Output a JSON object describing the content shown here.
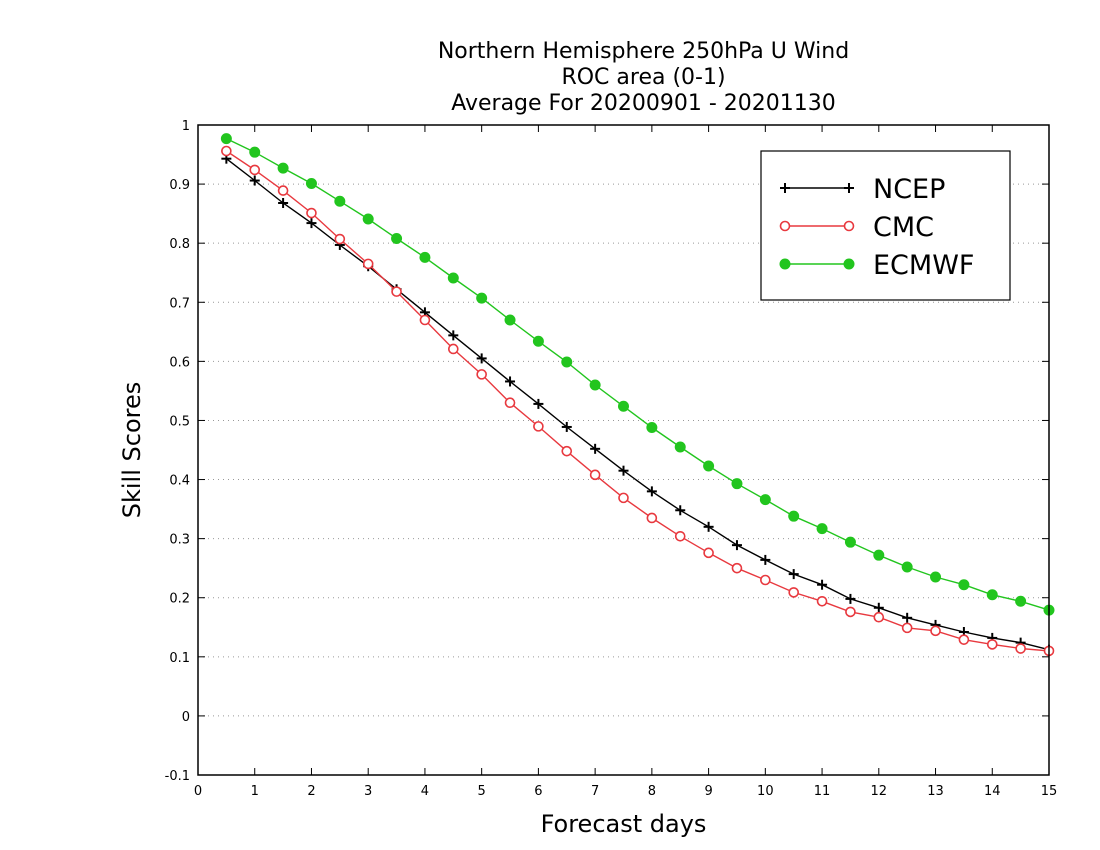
{
  "chart_data": {
    "type": "line",
    "title_lines": [
      "Northern Hemisphere 250hPa U Wind",
      "ROC area (0-1)",
      "Average For 20200901 - 20201130"
    ],
    "xlabel": "Forecast days",
    "ylabel": "Skill Scores",
    "xlim": [
      0,
      15
    ],
    "ylim": [
      -0.1,
      1
    ],
    "x_ticks": [
      0,
      1,
      2,
      3,
      4,
      5,
      6,
      7,
      8,
      9,
      10,
      11,
      12,
      13,
      14,
      15
    ],
    "y_ticks": [
      -0.1,
      0,
      0.1,
      0.2,
      0.3,
      0.4,
      0.5,
      0.6,
      0.7,
      0.8,
      0.9,
      1
    ],
    "y_tick_labels": [
      "-0.1",
      "0",
      "0.1",
      "0.2",
      "0.3",
      "0.4",
      "0.5",
      "0.6",
      "0.7",
      "0.8",
      "0.9",
      "1"
    ],
    "grid": "horizontal dotted",
    "legend_position": "top-right",
    "x": [
      0.5,
      1,
      1.5,
      2,
      2.5,
      3,
      3.5,
      4,
      4.5,
      5,
      5.5,
      6,
      6.5,
      7,
      7.5,
      8,
      8.5,
      9,
      9.5,
      10,
      10.5,
      11,
      11.5,
      12,
      12.5,
      13,
      13.5,
      14,
      14.5,
      15
    ],
    "series": [
      {
        "name": "NCEP",
        "color": "#000000",
        "marker": "plus",
        "values": [
          0.943,
          0.906,
          0.868,
          0.834,
          0.797,
          0.761,
          0.722,
          0.683,
          0.644,
          0.605,
          0.566,
          0.528,
          0.489,
          0.452,
          0.415,
          0.38,
          0.348,
          0.32,
          0.289,
          0.264,
          0.24,
          0.222,
          0.198,
          0.183,
          0.166,
          0.154,
          0.142,
          0.132,
          0.124,
          0.112
        ]
      },
      {
        "name": "CMC",
        "color": "#e8393f",
        "marker": "open-circle",
        "values": [
          0.956,
          0.924,
          0.889,
          0.851,
          0.807,
          0.765,
          0.718,
          0.67,
          0.621,
          0.578,
          0.53,
          0.49,
          0.448,
          0.408,
          0.369,
          0.335,
          0.304,
          0.276,
          0.25,
          0.23,
          0.209,
          0.194,
          0.176,
          0.167,
          0.149,
          0.144,
          0.129,
          0.121,
          0.114,
          0.11
        ]
      },
      {
        "name": "ECMWF",
        "color": "#22c51e",
        "marker": "filled-circle",
        "values": [
          0.977,
          0.954,
          0.927,
          0.901,
          0.871,
          0.841,
          0.808,
          0.776,
          0.741,
          0.707,
          0.67,
          0.634,
          0.599,
          0.56,
          0.524,
          0.488,
          0.455,
          0.423,
          0.393,
          0.366,
          0.338,
          0.317,
          0.294,
          0.272,
          0.252,
          0.235,
          0.222,
          0.205,
          0.194,
          0.179
        ]
      }
    ]
  }
}
